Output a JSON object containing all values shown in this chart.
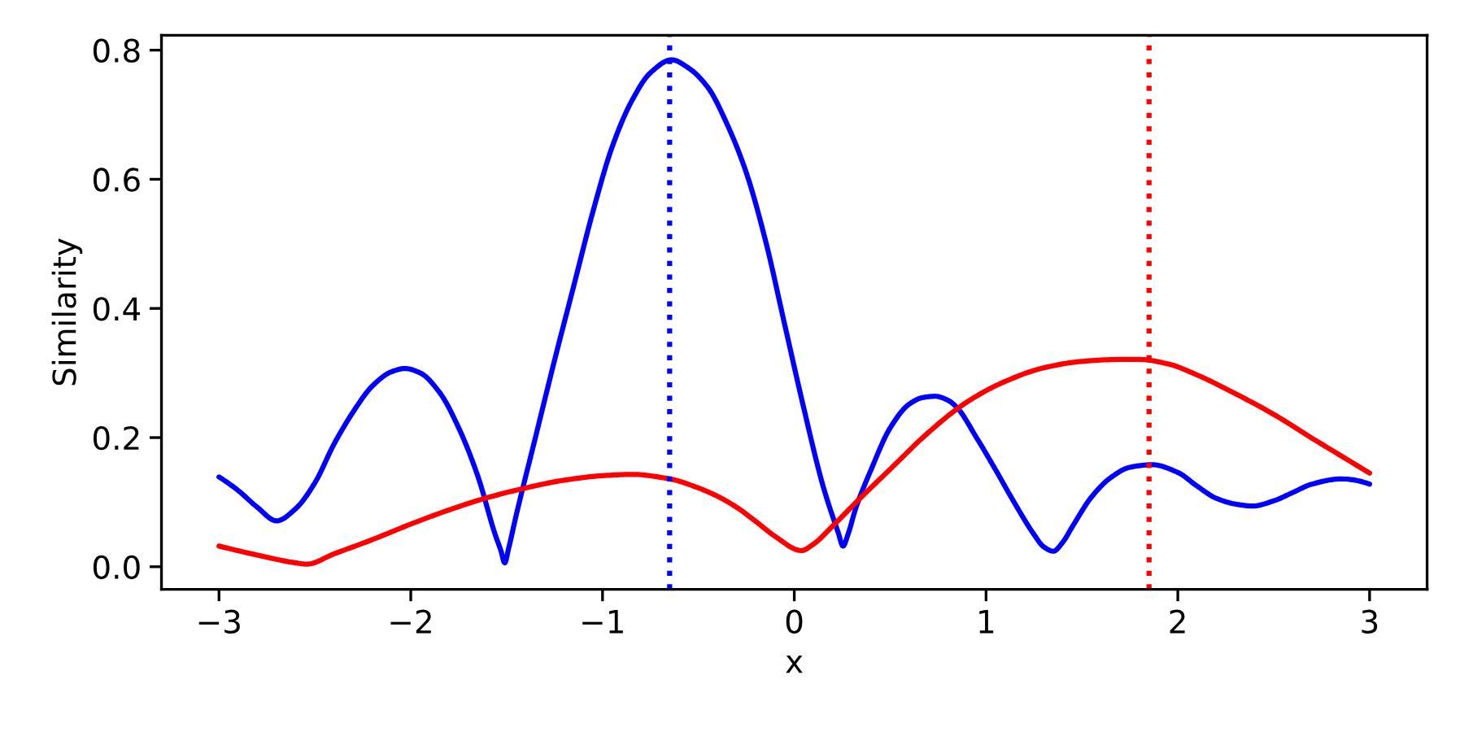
{
  "chart_data": {
    "type": "line",
    "xlabel": "x",
    "ylabel": "Similarity",
    "xlim": [
      -3.3,
      3.3
    ],
    "ylim": [
      -0.035,
      0.823
    ],
    "xticks": [
      {
        "value": -3,
        "label": "−3"
      },
      {
        "value": -2,
        "label": "−2"
      },
      {
        "value": -1,
        "label": "−1"
      },
      0,
      1,
      2,
      3
    ],
    "yticks": [
      {
        "value": 0,
        "label": "0.0"
      },
      0.2,
      0.4,
      0.6,
      0.8
    ],
    "series": [
      {
        "color": "#0000ff",
        "x": [
          -3.0,
          -2.9,
          -2.8,
          -2.7,
          -2.6,
          -2.5,
          -2.4,
          -2.3,
          -2.2,
          -2.1,
          -2.03,
          -1.95,
          -1.85,
          -1.75,
          -1.65,
          -1.56,
          -1.53,
          -1.51,
          -1.49,
          -1.45,
          -1.35,
          -1.25,
          -1.15,
          -1.05,
          -0.95,
          -0.85,
          -0.75,
          -0.64,
          -0.55,
          -0.45,
          -0.35,
          -0.25,
          -0.15,
          -0.05,
          0.05,
          0.15,
          0.23,
          0.254,
          0.28,
          0.32,
          0.4,
          0.5,
          0.6,
          0.67,
          0.735,
          0.8,
          0.85,
          0.95,
          1.05,
          1.15,
          1.25,
          1.3,
          1.351,
          1.4,
          1.45,
          1.55,
          1.65,
          1.75,
          1.866,
          2.0,
          2.1,
          2.2,
          2.3,
          2.39,
          2.5,
          2.6,
          2.7,
          2.85,
          3.0
        ],
        "values": [
          0.139,
          0.118,
          0.092,
          0.071,
          0.09,
          0.13,
          0.19,
          0.24,
          0.28,
          0.302,
          0.307,
          0.3,
          0.27,
          0.215,
          0.14,
          0.05,
          0.025,
          0.006,
          0.028,
          0.08,
          0.2,
          0.32,
          0.435,
          0.55,
          0.65,
          0.72,
          0.765,
          0.785,
          0.772,
          0.742,
          0.685,
          0.61,
          0.505,
          0.375,
          0.245,
          0.125,
          0.052,
          0.032,
          0.05,
          0.09,
          0.15,
          0.215,
          0.252,
          0.262,
          0.264,
          0.258,
          0.246,
          0.2,
          0.15,
          0.098,
          0.05,
          0.031,
          0.024,
          0.038,
          0.062,
          0.108,
          0.138,
          0.154,
          0.158,
          0.146,
          0.125,
          0.106,
          0.097,
          0.094,
          0.102,
          0.115,
          0.128,
          0.136,
          0.128
        ]
      },
      {
        "color": "#ff0000",
        "x": [
          -3.0,
          -2.8,
          -2.6,
          -2.542,
          -2.4,
          -2.2,
          -2.0,
          -1.8,
          -1.6,
          -1.4,
          -1.2,
          -1.0,
          -0.846,
          -0.65,
          -0.5,
          -0.4,
          -0.3,
          -0.2,
          -0.1,
          0.037,
          0.1,
          0.2,
          0.35,
          0.5,
          0.7,
          0.9,
          1.1,
          1.3,
          1.5,
          1.7,
          1.8,
          1.95,
          2.1,
          2.3,
          2.5,
          2.7,
          2.85,
          3.0
        ],
        "values": [
          0.032,
          0.018,
          0.006,
          0.004,
          0.02,
          0.042,
          0.066,
          0.088,
          0.107,
          0.122,
          0.134,
          0.141,
          0.143,
          0.136,
          0.122,
          0.109,
          0.092,
          0.07,
          0.047,
          0.025,
          0.035,
          0.063,
          0.108,
          0.151,
          0.208,
          0.255,
          0.287,
          0.308,
          0.318,
          0.321,
          0.321,
          0.314,
          0.297,
          0.268,
          0.236,
          0.199,
          0.172,
          0.145
        ]
      }
    ],
    "ref_lines": [
      {
        "axis": "x",
        "value": -0.65,
        "color": "#0000ff",
        "line_style": "dotted"
      },
      {
        "axis": "x",
        "value": 1.85,
        "color": "#ff0000",
        "line_style": "dotted"
      }
    ]
  }
}
